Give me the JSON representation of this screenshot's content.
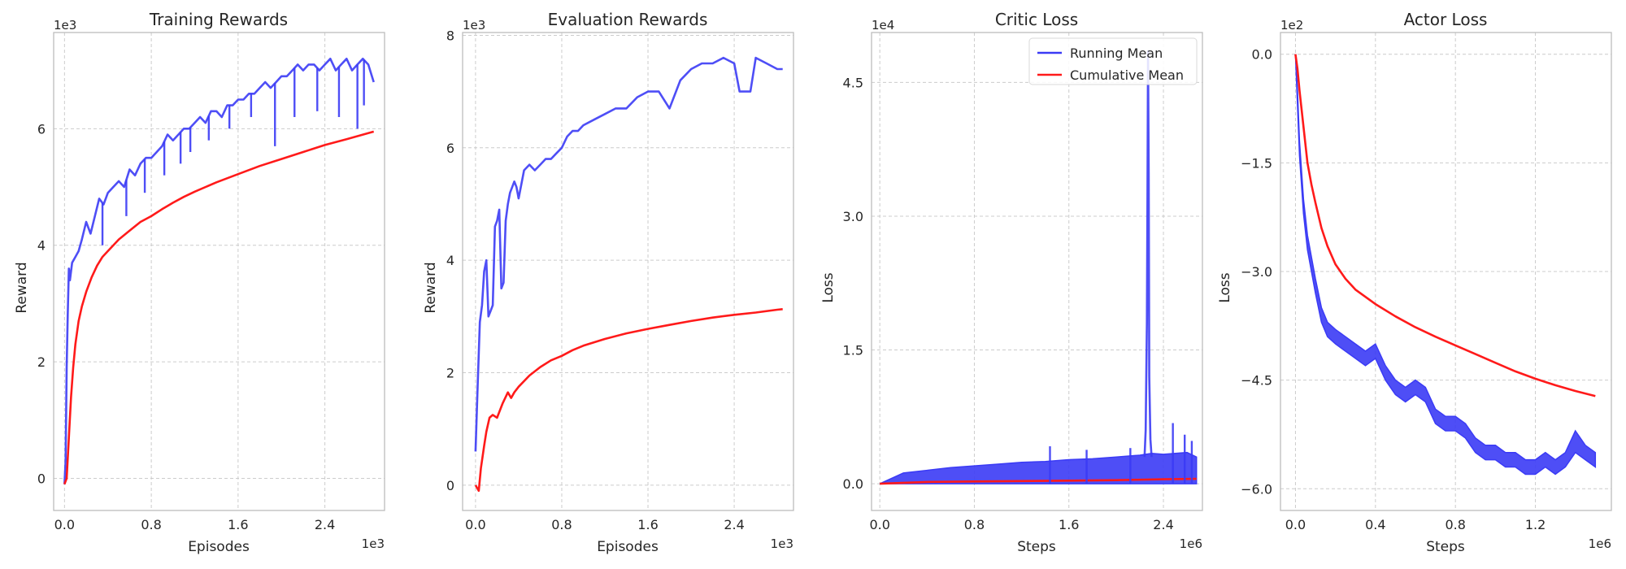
{
  "colors": {
    "running": "#3b3bf5",
    "cumulative": "#ff1a1a",
    "grid": "#cccccc",
    "frame": "#bdbdbd"
  },
  "chart_data": [
    {
      "type": "line",
      "title": "Training Rewards",
      "xlabel": "Episodes",
      "ylabel": "Reward",
      "x_multiplier": "1e3",
      "y_multiplier": "1e3",
      "xlim": [
        -0.1,
        2.95
      ],
      "ylim": [
        -0.55,
        7.65
      ],
      "xticks": [
        0.0,
        0.8,
        1.6,
        2.4
      ],
      "xtick_labels": [
        "0.0",
        "0.8",
        "1.6",
        "2.4"
      ],
      "yticks": [
        0,
        2,
        4,
        6
      ],
      "ytick_labels": [
        "0",
        "2",
        "4",
        "6"
      ],
      "grid": true,
      "series": [
        {
          "color": "#3b3bf5",
          "x": [
            0.0,
            0.01,
            0.02,
            0.03,
            0.04,
            0.05,
            0.07,
            0.1,
            0.13,
            0.16,
            0.2,
            0.24,
            0.28,
            0.32,
            0.36,
            0.4,
            0.45,
            0.5,
            0.55,
            0.6,
            0.65,
            0.7,
            0.75,
            0.8,
            0.85,
            0.9,
            0.95,
            1.0,
            1.05,
            1.1,
            1.15,
            1.2,
            1.25,
            1.3,
            1.35,
            1.4,
            1.45,
            1.5,
            1.55,
            1.6,
            1.65,
            1.7,
            1.75,
            1.8,
            1.85,
            1.9,
            1.95,
            2.0,
            2.05,
            2.1,
            2.15,
            2.2,
            2.25,
            2.3,
            2.35,
            2.4,
            2.45,
            2.5,
            2.55,
            2.6,
            2.65,
            2.7,
            2.75,
            2.8,
            2.85
          ],
          "y": [
            -0.1,
            0.3,
            1.9,
            2.8,
            3.6,
            3.4,
            3.7,
            3.8,
            3.9,
            4.1,
            4.4,
            4.2,
            4.5,
            4.8,
            4.7,
            4.9,
            5.0,
            5.1,
            5.0,
            5.3,
            5.2,
            5.4,
            5.5,
            5.5,
            5.6,
            5.7,
            5.9,
            5.8,
            5.9,
            6.0,
            6.0,
            6.1,
            6.2,
            6.1,
            6.3,
            6.3,
            6.2,
            6.4,
            6.4,
            6.5,
            6.5,
            6.6,
            6.6,
            6.7,
            6.8,
            6.7,
            6.8,
            6.9,
            6.9,
            7.0,
            7.1,
            7.0,
            7.1,
            7.1,
            7.0,
            7.1,
            7.2,
            7.0,
            7.1,
            7.2,
            7.0,
            7.1,
            7.2,
            7.1,
            6.8
          ]
        },
        {
          "color": "#ff1a1a",
          "x": [
            0.0,
            0.02,
            0.04,
            0.06,
            0.08,
            0.1,
            0.13,
            0.16,
            0.2,
            0.25,
            0.3,
            0.35,
            0.4,
            0.5,
            0.6,
            0.7,
            0.8,
            0.9,
            1.0,
            1.1,
            1.2,
            1.4,
            1.6,
            1.8,
            2.0,
            2.2,
            2.4,
            2.6,
            2.85
          ],
          "y": [
            -0.1,
            0.0,
            0.7,
            1.4,
            1.9,
            2.3,
            2.7,
            2.95,
            3.2,
            3.45,
            3.65,
            3.8,
            3.9,
            4.1,
            4.25,
            4.4,
            4.5,
            4.62,
            4.73,
            4.83,
            4.92,
            5.08,
            5.22,
            5.36,
            5.48,
            5.6,
            5.72,
            5.82,
            5.95
          ]
        }
      ],
      "spikes": [
        {
          "x": 0.35,
          "y": 4.0
        },
        {
          "x": 0.57,
          "y": 4.5
        },
        {
          "x": 0.74,
          "y": 4.9
        },
        {
          "x": 0.92,
          "y": 5.2
        },
        {
          "x": 1.07,
          "y": 5.4
        },
        {
          "x": 1.16,
          "y": 5.6
        },
        {
          "x": 1.33,
          "y": 5.8
        },
        {
          "x": 1.52,
          "y": 6.0
        },
        {
          "x": 1.72,
          "y": 6.2
        },
        {
          "x": 1.94,
          "y": 5.7
        },
        {
          "x": 2.12,
          "y": 6.2
        },
        {
          "x": 2.33,
          "y": 6.3
        },
        {
          "x": 2.53,
          "y": 6.2
        },
        {
          "x": 2.7,
          "y": 6.0
        },
        {
          "x": 2.76,
          "y": 6.4
        }
      ]
    },
    {
      "type": "line",
      "title": "Evaluation Rewards",
      "xlabel": "Episodes",
      "ylabel": "Reward",
      "x_multiplier": "1e3",
      "y_multiplier": "1e3",
      "xlim": [
        -0.12,
        2.95
      ],
      "ylim": [
        -0.45,
        8.05
      ],
      "xticks": [
        0.0,
        0.8,
        1.6,
        2.4
      ],
      "xtick_labels": [
        "0.0",
        "0.8",
        "1.6",
        "2.4"
      ],
      "yticks": [
        0,
        2,
        4,
        6,
        8
      ],
      "ytick_labels": [
        "0",
        "2",
        "4",
        "6",
        "8"
      ],
      "grid": true,
      "series": [
        {
          "color": "#3b3bf5",
          "x": [
            0.0,
            0.02,
            0.04,
            0.06,
            0.08,
            0.1,
            0.12,
            0.14,
            0.16,
            0.18,
            0.2,
            0.22,
            0.24,
            0.26,
            0.28,
            0.3,
            0.32,
            0.34,
            0.36,
            0.38,
            0.4,
            0.45,
            0.5,
            0.55,
            0.6,
            0.65,
            0.7,
            0.75,
            0.8,
            0.85,
            0.9,
            0.95,
            1.0,
            1.1,
            1.2,
            1.3,
            1.4,
            1.5,
            1.6,
            1.7,
            1.8,
            1.9,
            2.0,
            2.1,
            2.2,
            2.3,
            2.4,
            2.45,
            2.5,
            2.55,
            2.6,
            2.7,
            2.8,
            2.85
          ],
          "y": [
            0.6,
            1.8,
            2.9,
            3.2,
            3.8,
            4.0,
            3.0,
            3.1,
            3.2,
            4.6,
            4.7,
            4.9,
            3.5,
            3.6,
            4.7,
            5.0,
            5.2,
            5.3,
            5.4,
            5.3,
            5.1,
            5.6,
            5.7,
            5.6,
            5.7,
            5.8,
            5.8,
            5.9,
            6.0,
            6.2,
            6.3,
            6.3,
            6.4,
            6.5,
            6.6,
            6.7,
            6.7,
            6.9,
            7.0,
            7.0,
            6.7,
            7.2,
            7.4,
            7.5,
            7.5,
            7.6,
            7.5,
            7.0,
            7.0,
            7.0,
            7.6,
            7.5,
            7.4,
            7.4
          ]
        },
        {
          "color": "#ff1a1a",
          "x": [
            0.0,
            0.03,
            0.05,
            0.08,
            0.1,
            0.13,
            0.16,
            0.2,
            0.25,
            0.3,
            0.33,
            0.36,
            0.4,
            0.5,
            0.6,
            0.7,
            0.8,
            0.9,
            1.0,
            1.2,
            1.4,
            1.6,
            1.8,
            2.0,
            2.2,
            2.4,
            2.6,
            2.8,
            2.85
          ],
          "y": [
            0.0,
            -0.1,
            0.3,
            0.7,
            0.95,
            1.2,
            1.25,
            1.2,
            1.45,
            1.65,
            1.55,
            1.65,
            1.75,
            1.95,
            2.1,
            2.22,
            2.3,
            2.4,
            2.48,
            2.6,
            2.7,
            2.78,
            2.85,
            2.92,
            2.98,
            3.03,
            3.07,
            3.12,
            3.13
          ]
        }
      ],
      "spikes": []
    },
    {
      "type": "line",
      "title": "Critic Loss",
      "xlabel": "Steps",
      "ylabel": "Loss",
      "x_multiplier": "1e6",
      "y_multiplier": "1e4",
      "xlim": [
        -0.07,
        2.73
      ],
      "ylim": [
        -0.3,
        5.06
      ],
      "xticks": [
        0.0,
        0.8,
        1.6,
        2.4
      ],
      "xtick_labels": [
        "0.0",
        "0.8",
        "1.6",
        "2.4"
      ],
      "yticks": [
        0.0,
        1.5,
        3.0,
        4.5
      ],
      "ytick_labels": [
        "0.0",
        "1.5",
        "3.0",
        "4.5"
      ],
      "grid": true,
      "legend": {
        "position": "upper right",
        "entries": [
          "Running Mean",
          "Cumulative Mean"
        ]
      },
      "band": {
        "color": "#3b3bf5",
        "x": [
          0.0,
          0.2,
          0.4,
          0.6,
          0.8,
          1.0,
          1.2,
          1.4,
          1.6,
          1.8,
          2.0,
          2.2,
          2.3,
          2.4,
          2.6,
          2.68
        ],
        "upper": [
          0.0,
          0.12,
          0.15,
          0.18,
          0.2,
          0.22,
          0.24,
          0.25,
          0.27,
          0.28,
          0.3,
          0.32,
          0.34,
          0.33,
          0.35,
          0.3
        ],
        "lower": [
          0.0,
          0.0,
          0.0,
          0.0,
          0.0,
          0.0,
          0.0,
          0.0,
          0.0,
          0.0,
          0.0,
          0.0,
          0.0,
          0.0,
          0.0,
          0.0
        ]
      },
      "series": [
        {
          "name": "Running Mean",
          "color": "#3b3bf5",
          "x": [
            2.24,
            2.25,
            2.26,
            2.265,
            2.27,
            2.275,
            2.28,
            2.29,
            2.3
          ],
          "y": [
            0.3,
            0.6,
            1.8,
            3.2,
            4.85,
            3.5,
            1.2,
            0.5,
            0.3
          ]
        },
        {
          "name": "Cumulative Mean",
          "color": "#ff1a1a",
          "x": [
            0.0,
            0.4,
            0.8,
            1.2,
            1.6,
            2.0,
            2.4,
            2.68
          ],
          "y": [
            0.0,
            0.02,
            0.025,
            0.03,
            0.035,
            0.04,
            0.05,
            0.055
          ]
        }
      ],
      "spikes": [
        {
          "x": 1.44,
          "y": 0.42
        },
        {
          "x": 1.75,
          "y": 0.38
        },
        {
          "x": 2.12,
          "y": 0.4
        },
        {
          "x": 2.48,
          "y": 0.68
        },
        {
          "x": 2.58,
          "y": 0.55
        },
        {
          "x": 2.64,
          "y": 0.48
        }
      ]
    },
    {
      "type": "line",
      "title": "Actor Loss",
      "xlabel": "Steps",
      "ylabel": "Loss",
      "x_multiplier": "1e6",
      "y_multiplier": "1e2",
      "xlim": [
        -0.075,
        1.58
      ],
      "ylim": [
        -6.3,
        0.3
      ],
      "xticks": [
        0.0,
        0.4,
        0.8,
        1.2
      ],
      "xtick_labels": [
        "0.0",
        "0.4",
        "0.8",
        "1.2"
      ],
      "yticks": [
        0.0,
        -1.5,
        -3.0,
        -4.5,
        -6.0
      ],
      "ytick_labels": [
        "0.0",
        "−1.5",
        "−3.0",
        "−4.5",
        "−6.0"
      ],
      "grid": true,
      "band": {
        "color": "#3b3bf5",
        "x": [
          0.0,
          0.01,
          0.02,
          0.04,
          0.06,
          0.08,
          0.1,
          0.13,
          0.16,
          0.2,
          0.25,
          0.3,
          0.35,
          0.4,
          0.45,
          0.5,
          0.55,
          0.6,
          0.65,
          0.7,
          0.75,
          0.8,
          0.85,
          0.9,
          0.95,
          1.0,
          1.05,
          1.1,
          1.15,
          1.2,
          1.25,
          1.3,
          1.35,
          1.4,
          1.45,
          1.5
        ],
        "upper": [
          0.0,
          -0.5,
          -1.2,
          -2.0,
          -2.5,
          -2.8,
          -3.1,
          -3.5,
          -3.7,
          -3.8,
          -3.9,
          -4.0,
          -4.1,
          -4.0,
          -4.3,
          -4.5,
          -4.6,
          -4.5,
          -4.6,
          -4.9,
          -5.0,
          -5.0,
          -5.1,
          -5.3,
          -5.4,
          -5.4,
          -5.5,
          -5.5,
          -5.6,
          -5.6,
          -5.5,
          -5.6,
          -5.5,
          -5.2,
          -5.4,
          -5.5
        ],
        "lower": [
          0.0,
          -0.7,
          -1.4,
          -2.2,
          -2.7,
          -3.0,
          -3.3,
          -3.7,
          -3.9,
          -4.0,
          -4.1,
          -4.2,
          -4.3,
          -4.2,
          -4.5,
          -4.7,
          -4.8,
          -4.7,
          -4.8,
          -5.1,
          -5.2,
          -5.2,
          -5.3,
          -5.5,
          -5.6,
          -5.6,
          -5.7,
          -5.7,
          -5.8,
          -5.8,
          -5.7,
          -5.8,
          -5.7,
          -5.5,
          -5.6,
          -5.7
        ]
      },
      "series": [
        {
          "name": "Running Mean",
          "color": "#3b3bf5",
          "x": [],
          "y": []
        },
        {
          "name": "Cumulative Mean",
          "color": "#ff1a1a",
          "x": [
            0.0,
            0.01,
            0.02,
            0.04,
            0.06,
            0.08,
            0.1,
            0.13,
            0.16,
            0.2,
            0.25,
            0.3,
            0.35,
            0.4,
            0.5,
            0.6,
            0.7,
            0.8,
            0.9,
            1.0,
            1.1,
            1.2,
            1.3,
            1.4,
            1.5
          ],
          "y": [
            0.0,
            -0.2,
            -0.5,
            -1.0,
            -1.5,
            -1.8,
            -2.05,
            -2.4,
            -2.65,
            -2.9,
            -3.1,
            -3.25,
            -3.35,
            -3.45,
            -3.62,
            -3.77,
            -3.9,
            -4.02,
            -4.14,
            -4.26,
            -4.38,
            -4.48,
            -4.57,
            -4.65,
            -4.72
          ]
        }
      ],
      "spikes": []
    }
  ]
}
